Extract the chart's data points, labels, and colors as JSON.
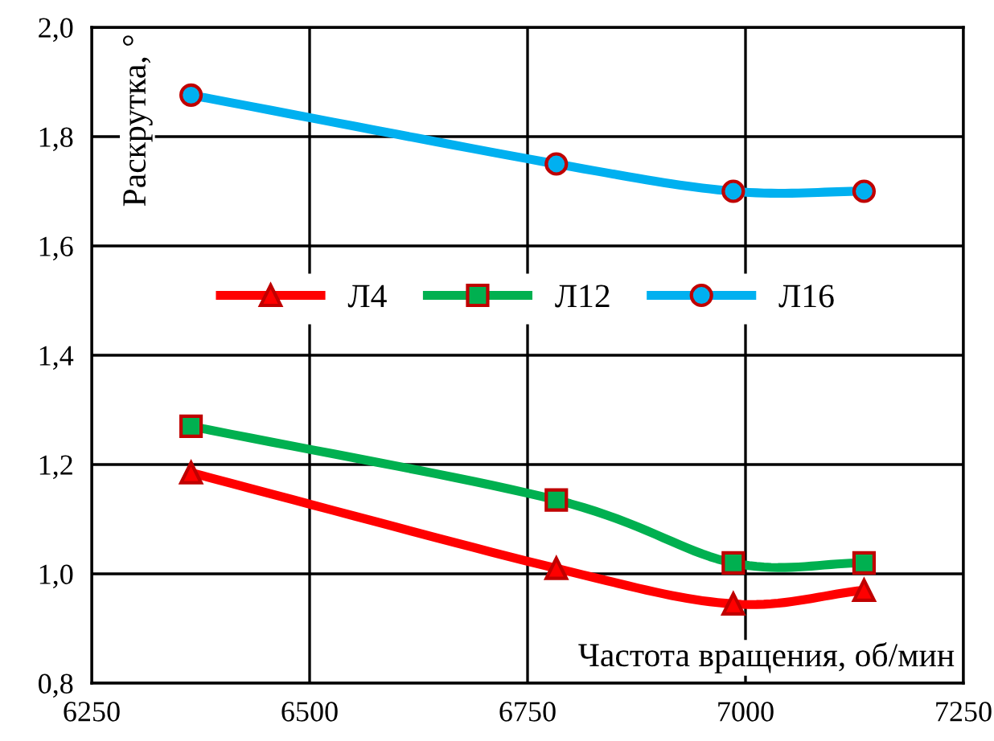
{
  "chart_data": {
    "type": "line",
    "xlabel": "Частота вращения, об/мин",
    "ylabel": "Раскрутка, °",
    "x": [
      6364,
      6783,
      6986,
      7136
    ],
    "series": [
      {
        "name": "Л4",
        "color": "#ff0000",
        "marker": "triangle",
        "values": [
          1.185,
          1.01,
          0.945,
          0.97
        ]
      },
      {
        "name": "Л12",
        "color": "#00b050",
        "marker": "square",
        "values": [
          1.27,
          1.135,
          1.02,
          1.02
        ]
      },
      {
        "name": "Л16",
        "color": "#00b0f0",
        "marker": "circle",
        "values": [
          1.876,
          1.75,
          1.7,
          1.7
        ]
      }
    ],
    "xlim": [
      6250,
      7250
    ],
    "xticks": [
      6250,
      6500,
      6750,
      7000,
      7250
    ],
    "ylim": [
      0.8,
      2.0
    ],
    "yticks": [
      {
        "value": 0.8,
        "label": "0,8"
      },
      {
        "value": 1.0,
        "label": "1,0"
      },
      {
        "value": 1.2,
        "label": "1,2"
      },
      {
        "value": 1.4,
        "label": "1,4"
      },
      {
        "value": 1.6,
        "label": "1,6"
      },
      {
        "value": 1.8,
        "label": "1,8"
      },
      {
        "value": 2.0,
        "label": "2,0"
      }
    ],
    "grid": true,
    "legend": "top",
    "line_style": "solid"
  }
}
